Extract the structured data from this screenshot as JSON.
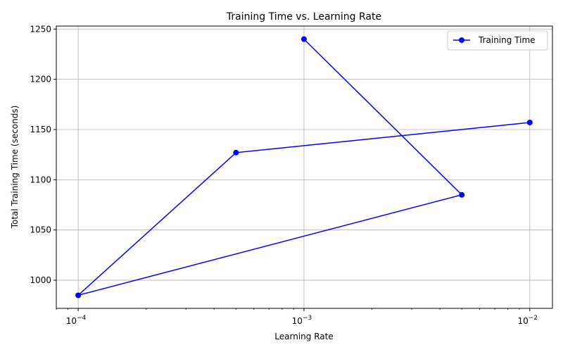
{
  "chart_data": {
    "type": "line",
    "title": "Training Time vs. Learning Rate",
    "xlabel": "Learning Rate",
    "ylabel": "Total Training Time (seconds)",
    "xscale": "log",
    "xlim": [
      8e-05,
      0.0126
    ],
    "ylim": [
      972,
      1253
    ],
    "x_ticks": [
      0.0001,
      0.001,
      0.01
    ],
    "x_tick_labels": [
      {
        "base": "10",
        "exp": "−4"
      },
      {
        "base": "10",
        "exp": "−3"
      },
      {
        "base": "10",
        "exp": "−2"
      }
    ],
    "y_ticks": [
      1000,
      1050,
      1100,
      1150,
      1200,
      1250
    ],
    "y_tick_labels": [
      "1000",
      "1050",
      "1100",
      "1150",
      "1200",
      "1250"
    ],
    "grid": true,
    "legend_position": "top-right",
    "series": [
      {
        "name": "Training Time",
        "color": "#0000ff",
        "marker": "circle",
        "x": [
          0.001,
          0.005,
          0.0001,
          0.0005,
          0.01
        ],
        "y": [
          1240,
          1085,
          985,
          1127,
          1157
        ]
      }
    ]
  }
}
